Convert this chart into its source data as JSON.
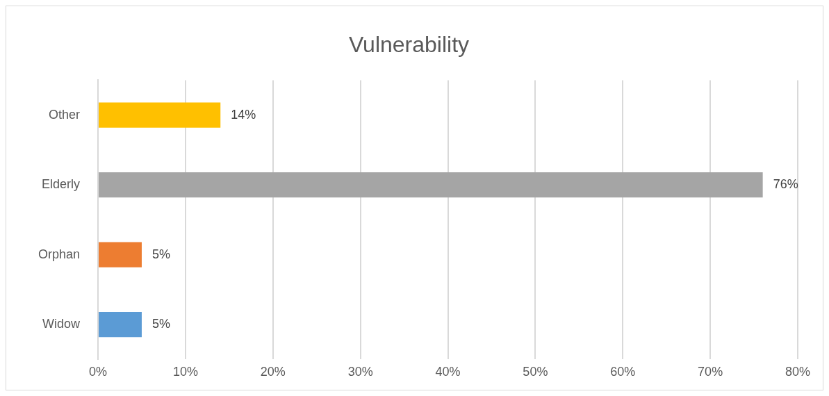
{
  "chart_data": {
    "type": "bar",
    "orientation": "horizontal",
    "title": "Vulnerability",
    "categories": [
      "Other",
      "Elderly",
      "Orphan",
      "Widow"
    ],
    "values": [
      14,
      76,
      5,
      5
    ],
    "colors": [
      "#ffc000",
      "#a5a5a5",
      "#ed7d31",
      "#5b9bd5"
    ],
    "value_labels": [
      "14%",
      "76%",
      "5%",
      "5%"
    ],
    "xlim": [
      0,
      80
    ],
    "xticks": [
      {
        "value": 0,
        "label": "0%"
      },
      {
        "value": 10,
        "label": "10%"
      },
      {
        "value": 20,
        "label": "20%"
      },
      {
        "value": 30,
        "label": "30%"
      },
      {
        "value": 40,
        "label": "40%"
      },
      {
        "value": 50,
        "label": "50%"
      },
      {
        "value": 60,
        "label": "60%"
      },
      {
        "value": 70,
        "label": "70%"
      },
      {
        "value": 80,
        "label": "80%"
      }
    ],
    "grid": "x",
    "legend": false
  }
}
